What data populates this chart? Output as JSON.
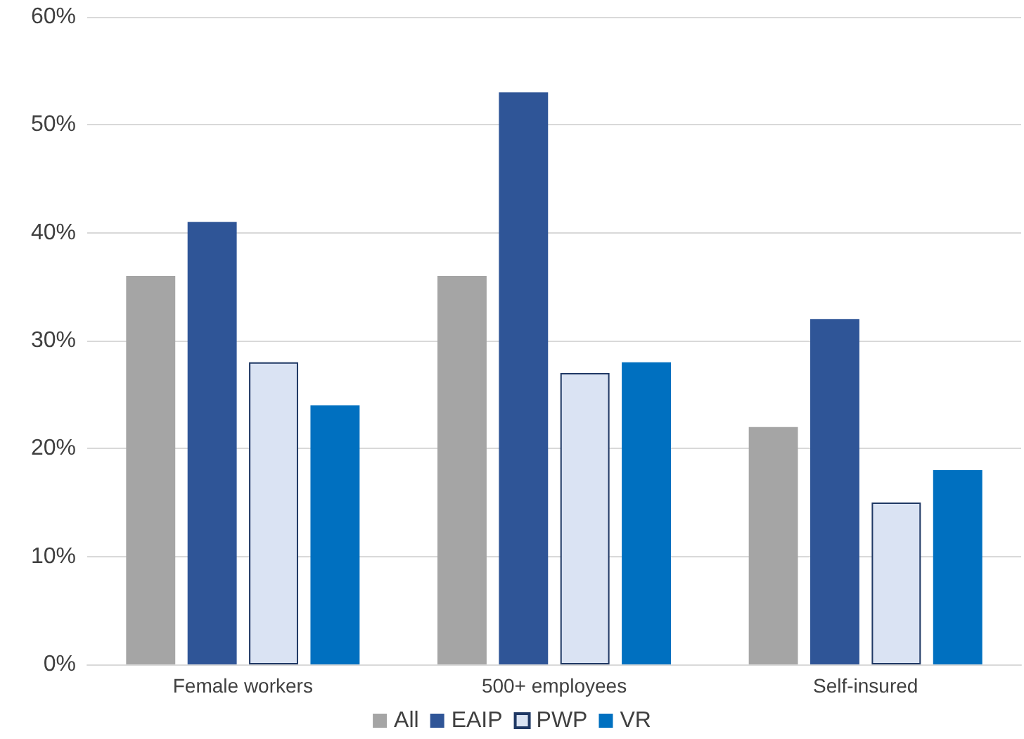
{
  "chart_data": {
    "type": "bar",
    "categories": [
      "Female workers",
      "500+ employees",
      "Self-insured"
    ],
    "series": [
      {
        "name": "All",
        "color": "#a5a5a5",
        "values": [
          36,
          36,
          22
        ]
      },
      {
        "name": "EAIP",
        "color": "#2f5597",
        "values": [
          41,
          53,
          32
        ]
      },
      {
        "name": "PWP",
        "color": "#dae3f3",
        "values": [
          28,
          27,
          15
        ]
      },
      {
        "name": "VR",
        "color": "#0070c0",
        "values": [
          24,
          28,
          18
        ]
      }
    ],
    "ylim": [
      0,
      60
    ],
    "yticks": [
      {
        "value": 0,
        "label": "0%"
      },
      {
        "value": 10,
        "label": "10%"
      },
      {
        "value": 20,
        "label": "20%"
      },
      {
        "value": 30,
        "label": "30%"
      },
      {
        "value": 40,
        "label": "40%"
      },
      {
        "value": 50,
        "label": "50%"
      },
      {
        "value": 60,
        "label": "60%"
      }
    ],
    "grid": "y",
    "legend": "bottom"
  }
}
